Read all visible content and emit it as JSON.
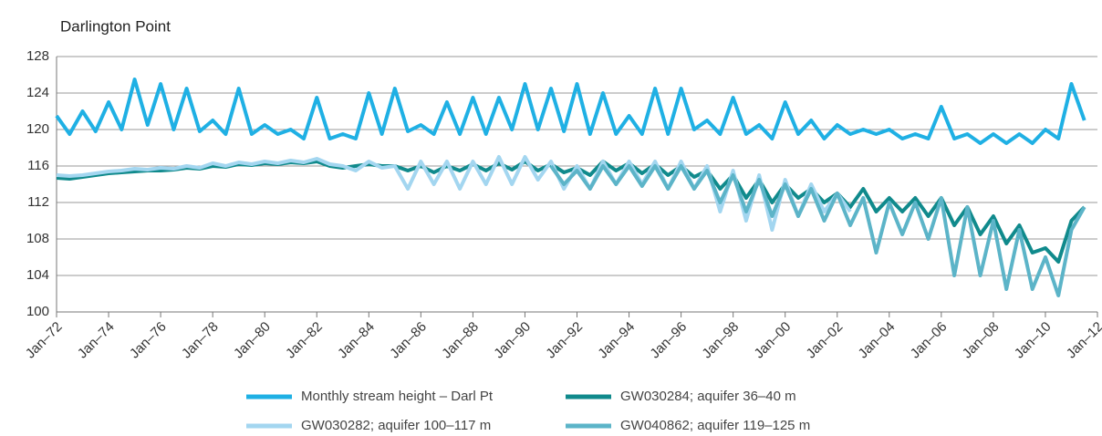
{
  "chart_data": {
    "type": "line",
    "title": "Darlington Point",
    "xlim": [
      1972,
      2012
    ],
    "ylim": [
      100,
      128
    ],
    "yticks": [
      100,
      104,
      108,
      112,
      116,
      120,
      124,
      128
    ],
    "xticks": [
      {
        "value": 1972,
        "label": "Jan–72"
      },
      {
        "value": 1974,
        "label": "Jan–74"
      },
      {
        "value": 1976,
        "label": "Jan–76"
      },
      {
        "value": 1978,
        "label": "Jan–78"
      },
      {
        "value": 1980,
        "label": "Jan–80"
      },
      {
        "value": 1982,
        "label": "Jan–82"
      },
      {
        "value": 1984,
        "label": "Jan–84"
      },
      {
        "value": 1986,
        "label": "Jan–86"
      },
      {
        "value": 1988,
        "label": "Jan–88"
      },
      {
        "value": 1990,
        "label": "Jan–90"
      },
      {
        "value": 1992,
        "label": "Jan–92"
      },
      {
        "value": 1994,
        "label": "Jan–94"
      },
      {
        "value": 1996,
        "label": "Jan–96"
      },
      {
        "value": 1998,
        "label": "Jan–98"
      },
      {
        "value": 2000,
        "label": "Jan–00"
      },
      {
        "value": 2002,
        "label": "Jan–02"
      },
      {
        "value": 2004,
        "label": "Jan–04"
      },
      {
        "value": 2006,
        "label": "Jan–06"
      },
      {
        "value": 2008,
        "label": "Jan–08"
      },
      {
        "value": 2010,
        "label": "Jan–10"
      },
      {
        "value": 2012,
        "label": "Jan–12"
      }
    ],
    "grid": true,
    "x": [
      1972,
      1972.5,
      1973,
      1973.5,
      1974,
      1974.5,
      1975,
      1975.5,
      1976,
      1976.5,
      1977,
      1977.5,
      1978,
      1978.5,
      1979,
      1979.5,
      1980,
      1980.5,
      1981,
      1981.5,
      1982,
      1982.5,
      1983,
      1983.5,
      1984,
      1984.5,
      1985,
      1985.5,
      1986,
      1986.5,
      1987,
      1987.5,
      1988,
      1988.5,
      1989,
      1989.5,
      1990,
      1990.5,
      1991,
      1991.5,
      1992,
      1992.5,
      1993,
      1993.5,
      1994,
      1994.5,
      1995,
      1995.5,
      1996,
      1996.5,
      1997,
      1997.5,
      1998,
      1998.5,
      1999,
      1999.5,
      2000,
      2000.5,
      2001,
      2001.5,
      2002,
      2002.5,
      2003,
      2003.5,
      2004,
      2004.5,
      2005,
      2005.5,
      2006,
      2006.5,
      2007,
      2007.5,
      2008,
      2008.5,
      2009,
      2009.5,
      2010,
      2010.5,
      2011,
      2011.5
    ],
    "series": [
      {
        "name": "Monthly stream height – Darl Pt",
        "color": "#1fb0e4",
        "values": [
          121.5,
          119.5,
          122,
          119.8,
          123,
          120,
          125.5,
          120.5,
          125,
          120,
          124.5,
          119.8,
          121,
          119.5,
          124.5,
          119.5,
          120.5,
          119.5,
          120,
          119,
          123.5,
          119,
          119.5,
          119,
          124,
          119.5,
          124.5,
          119.8,
          120.5,
          119.5,
          123,
          119.5,
          123.5,
          119.5,
          123.5,
          120,
          125,
          120,
          124.5,
          119.8,
          125,
          119.5,
          124,
          119.5,
          121.5,
          119.5,
          124.5,
          119.5,
          124.5,
          120,
          121,
          119.5,
          123.5,
          119.5,
          120.5,
          119,
          123,
          119.5,
          121,
          119,
          120.5,
          119.5,
          120,
          119.5,
          120,
          119,
          119.5,
          119,
          122.5,
          119,
          119.5,
          118.5,
          119.5,
          118.5,
          119.5,
          118.5,
          120,
          119,
          125,
          121
        ]
      },
      {
        "name": "GW030284; aquifer 36–40 m",
        "color": "#108a8c",
        "values": [
          114.7,
          114.6,
          114.8,
          115,
          115.2,
          115.3,
          115.4,
          115.5,
          115.5,
          115.6,
          115.8,
          115.7,
          116,
          115.9,
          116.2,
          116.1,
          116.3,
          116.2,
          116.4,
          116.3,
          116.5,
          116,
          115.8,
          116,
          116.2,
          116,
          116,
          115.5,
          116,
          115.3,
          116,
          115.5,
          116.2,
          115.5,
          116.3,
          115.6,
          116.5,
          115.5,
          116.2,
          115.3,
          115.8,
          115,
          116.5,
          115.5,
          116.3,
          115.2,
          116.2,
          115,
          116,
          114.8,
          115.5,
          113.5,
          115,
          112.5,
          114.5,
          112,
          114,
          112.5,
          113.5,
          112,
          113,
          111.5,
          113.5,
          111,
          112.5,
          111,
          112.5,
          110.5,
          112.5,
          109.5,
          111.5,
          108.5,
          110.5,
          107.5,
          109.5,
          106.5,
          107,
          105.5,
          110,
          111.5
        ]
      },
      {
        "name": "GW030282; aquifer 100–117 m",
        "color": "#a3d6f0",
        "values": [
          115,
          114.9,
          115,
          115.2,
          115.4,
          115.5,
          115.7,
          115.6,
          115.8,
          115.7,
          116,
          115.8,
          116.3,
          116,
          116.4,
          116.2,
          116.5,
          116.3,
          116.6,
          116.4,
          116.8,
          116.2,
          116,
          115.5,
          116.5,
          115.8,
          116,
          113.5,
          116.5,
          114,
          116.5,
          113.5,
          116.5,
          114,
          117,
          114,
          117,
          114.5,
          116.5,
          113.5,
          116,
          113.5,
          116.5,
          114,
          116.5,
          114,
          116.5,
          113.5,
          116.5,
          113.5,
          116,
          111,
          115.5,
          110,
          115,
          109,
          114.5,
          110.5,
          114,
          111,
          113,
          111,
          null,
          null,
          null,
          null,
          null,
          null,
          null,
          null,
          null,
          null,
          null,
          null,
          null,
          null,
          null,
          null,
          null,
          null
        ]
      },
      {
        "name": "GW040862; aquifer 119–125 m",
        "color": "#5cb4c8",
        "values": [
          null,
          null,
          null,
          null,
          null,
          null,
          null,
          null,
          null,
          null,
          null,
          null,
          null,
          null,
          null,
          null,
          null,
          null,
          null,
          null,
          null,
          null,
          null,
          null,
          null,
          null,
          null,
          null,
          null,
          null,
          null,
          null,
          null,
          null,
          null,
          null,
          null,
          null,
          116,
          114,
          115.5,
          113.5,
          116,
          114,
          116,
          113.8,
          116,
          113.5,
          116,
          113.5,
          115.5,
          112,
          115,
          111,
          114.5,
          110.5,
          114,
          110.5,
          113.5,
          110,
          113,
          109.5,
          112.5,
          106.5,
          112,
          108.5,
          112,
          108,
          112.5,
          104,
          111.5,
          104,
          110,
          102.5,
          109,
          102.5,
          106,
          101.8,
          109,
          111.5
        ]
      }
    ]
  }
}
